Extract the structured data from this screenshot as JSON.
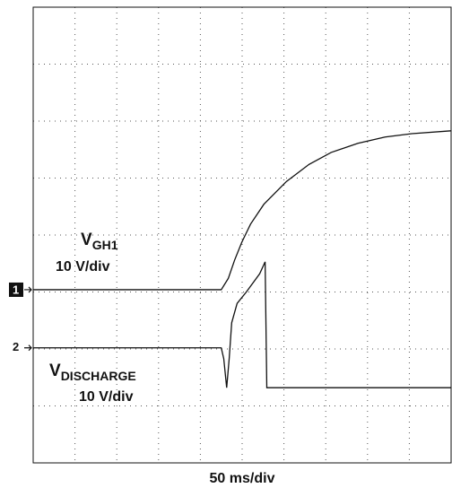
{
  "chart_data": {
    "type": "line",
    "xlabel": "50 ms/div",
    "xlim": [
      0,
      10
    ],
    "ylim": [
      0,
      8
    ],
    "xticks": [
      0,
      1,
      2,
      3,
      4,
      5,
      6,
      7,
      8,
      9,
      10
    ],
    "yticks": [
      0,
      1,
      2,
      3,
      4,
      5,
      6,
      7,
      8
    ],
    "grid": true,
    "series": [
      {
        "name": "V",
        "subscript": "GH1",
        "scale": "10 V/div",
        "marker": "1",
        "color": "#111111",
        "x": [
          0,
          4.5,
          4.67,
          4.82,
          4.99,
          5.2,
          5.52,
          6.06,
          6.6,
          7.13,
          7.77,
          8.42,
          9.06,
          10
        ],
        "values": [
          3.04,
          3.04,
          3.24,
          3.56,
          3.87,
          4.19,
          4.54,
          4.94,
          5.24,
          5.45,
          5.61,
          5.72,
          5.78,
          5.83
        ]
      },
      {
        "name": "V",
        "subscript": "DISCHARGE",
        "scale": "10 V/div",
        "marker": "2",
        "color": "#111111",
        "x": [
          0,
          4.5,
          4.56,
          4.63,
          4.69,
          4.75,
          4.88,
          5.1,
          5.42,
          5.55,
          5.59,
          10
        ],
        "values": [
          2.02,
          2.02,
          1.83,
          1.32,
          1.83,
          2.46,
          2.8,
          3.0,
          3.32,
          3.53,
          1.32,
          1.32
        ]
      }
    ]
  }
}
